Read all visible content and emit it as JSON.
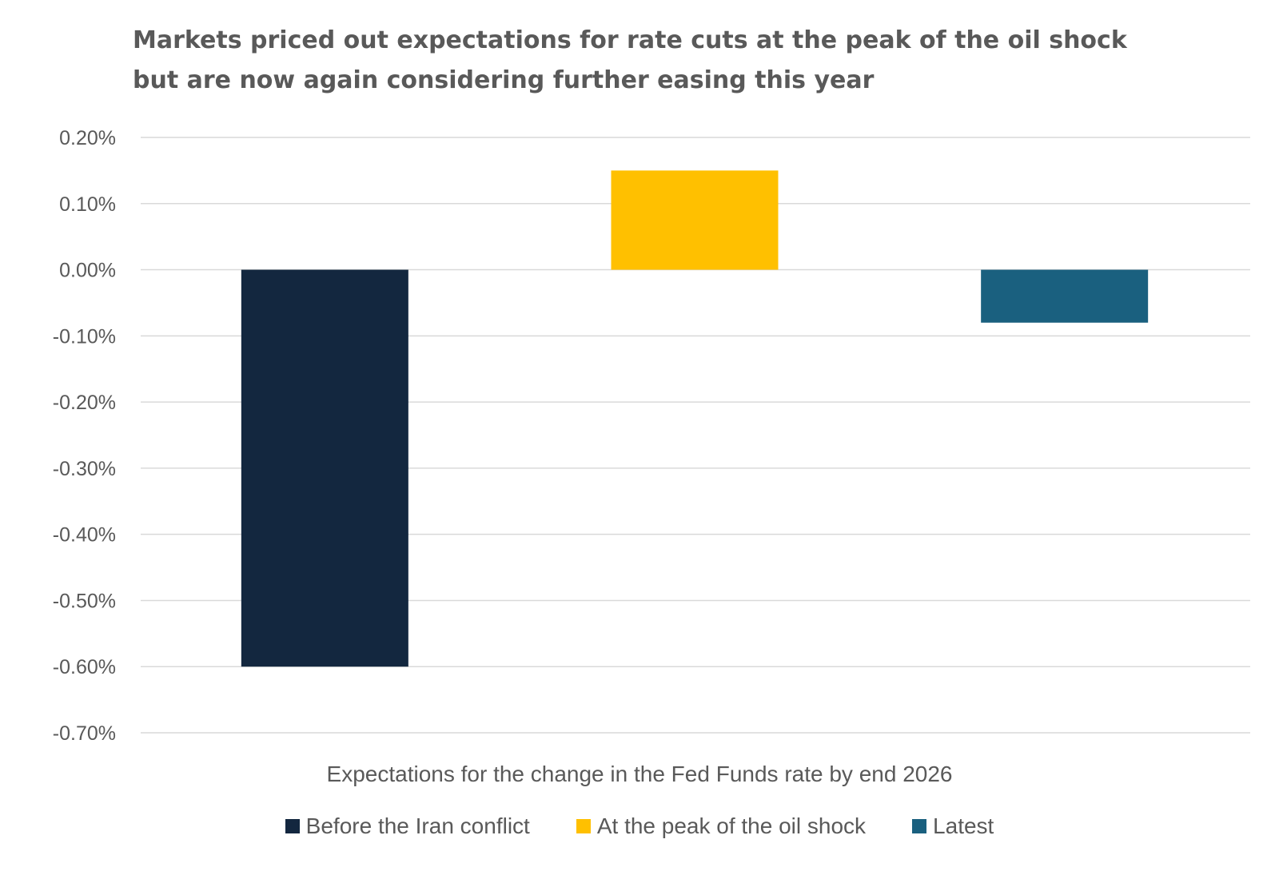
{
  "chart_data": {
    "type": "bar",
    "title": "Markets priced out expectations for rate cuts at the peak of the oil shock but are now again considering further easing this year",
    "xlabel": "Expectations for the change in the Fed Funds rate by end 2026",
    "ylabel": "",
    "ylim": [
      -0.7,
      0.2
    ],
    "yticks": [
      "0.20%",
      "0.10%",
      "0.00%",
      "-0.10%",
      "-0.20%",
      "-0.30%",
      "-0.40%",
      "-0.50%",
      "-0.60%",
      "-0.70%"
    ],
    "grid": true,
    "legend_position": "bottom",
    "series": [
      {
        "name": "Before the Iran conflict",
        "value": -0.6,
        "color": "#13273F"
      },
      {
        "name": "At the peak of the oil shock",
        "value": 0.15,
        "color": "#FFC000"
      },
      {
        "name": "Latest",
        "value": -0.08,
        "color": "#1A607F"
      }
    ]
  }
}
